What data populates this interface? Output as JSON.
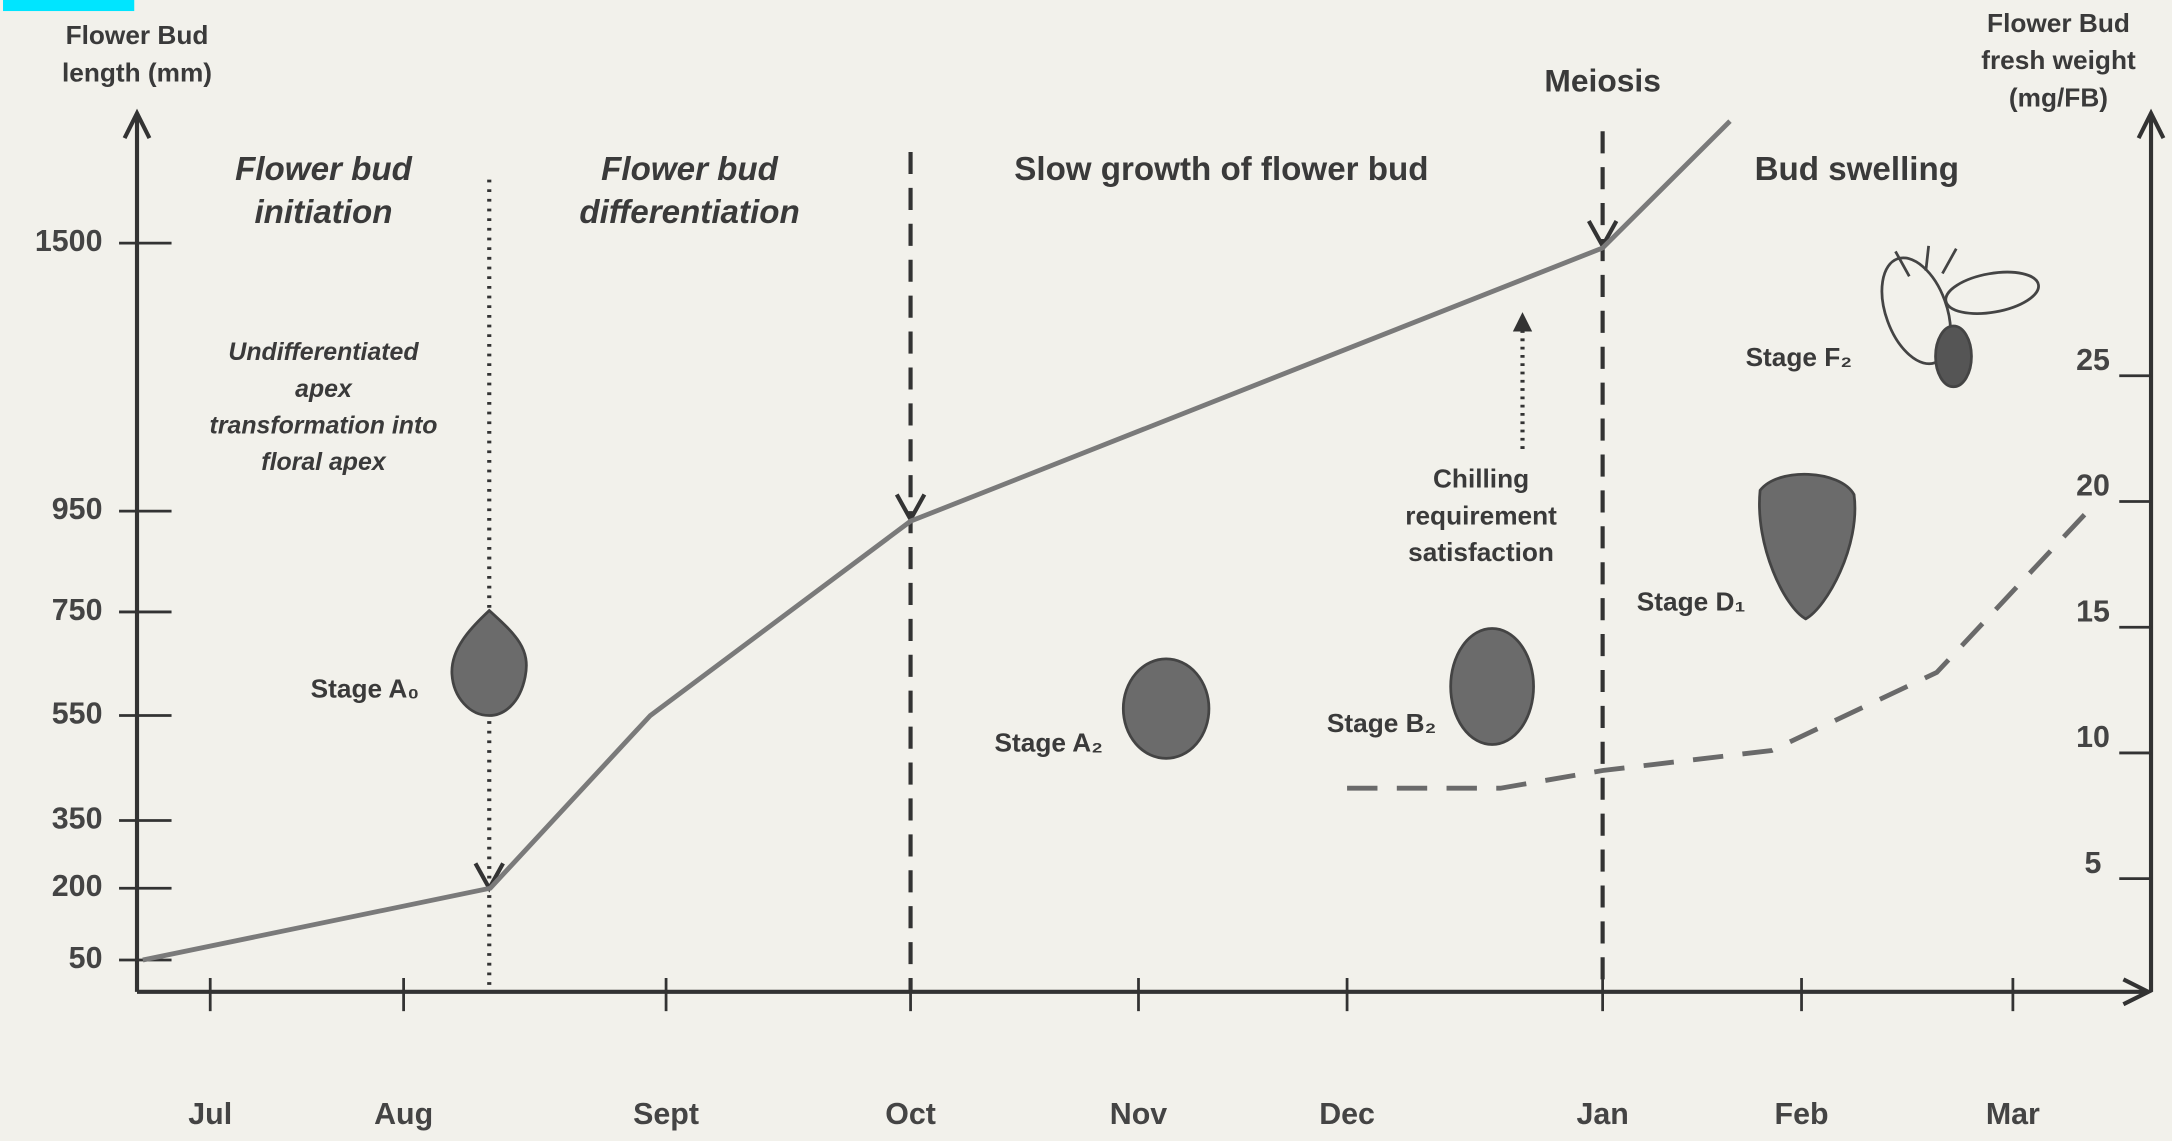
{
  "chart_data": {
    "type": "line",
    "y_label": [
      "Flower Bud",
      "length (mm)"
    ],
    "y2_label": [
      "Flower Bud",
      "fresh weight",
      "(mg/FB)"
    ],
    "xlim": [
      -0.38,
      8.6
    ],
    "xticks": [
      {
        "value": 0,
        "label": "Jul"
      },
      {
        "value": 1,
        "label": "Aug"
      },
      {
        "value": 2,
        "label": "Sept"
      },
      {
        "value": 3,
        "label": "Oct"
      },
      {
        "value": 4,
        "label": "Nov"
      },
      {
        "value": 5,
        "label": "Dec"
      },
      {
        "value": 6,
        "label": "Jan"
      },
      {
        "value": 7,
        "label": "Feb"
      },
      {
        "value": 8,
        "label": "Mar"
      }
    ],
    "ylim": [
      0,
      1800
    ],
    "yticks": [
      50,
      200,
      350,
      550,
      750,
      950,
      1500
    ],
    "y2lim": [
      0.5,
      35
    ],
    "y2ticks": [
      5,
      10,
      15,
      20,
      25
    ],
    "series": [
      {
        "x": [
          -0.35,
          1.33,
          1.94,
          3,
          6,
          6.64
        ],
        "values": [
          50,
          200,
          550,
          930,
          1490,
          1750
        ],
        "color": "#7a7a7a",
        "style": "solid"
      },
      {
        "x": [
          5,
          5.6,
          6,
          6.85,
          7.64,
          8.36
        ],
        "values": [
          8.6,
          8.6,
          9.3,
          10.1,
          13.2,
          19.6
        ],
        "color": "#6a6a6a",
        "style": "dashed",
        "axis": "y2"
      }
    ],
    "annotations": [
      [
        "Flower bud",
        "initiation"
      ],
      [
        "Flower bud",
        "differentiation"
      ],
      [
        "Slow growth of flower bud"
      ],
      [
        "Bud swelling"
      ],
      [
        "Meiosis"
      ],
      [
        "Undifferentiated",
        "apex",
        "transformation  into",
        "floral apex"
      ],
      [
        "Chilling",
        "requirement",
        "satisfaction"
      ],
      [
        "Stage A₀"
      ],
      [
        "Stage A₂"
      ],
      [
        "Stage B₂"
      ],
      [
        "Stage D₁"
      ],
      [
        "Stage F₂"
      ]
    ]
  }
}
